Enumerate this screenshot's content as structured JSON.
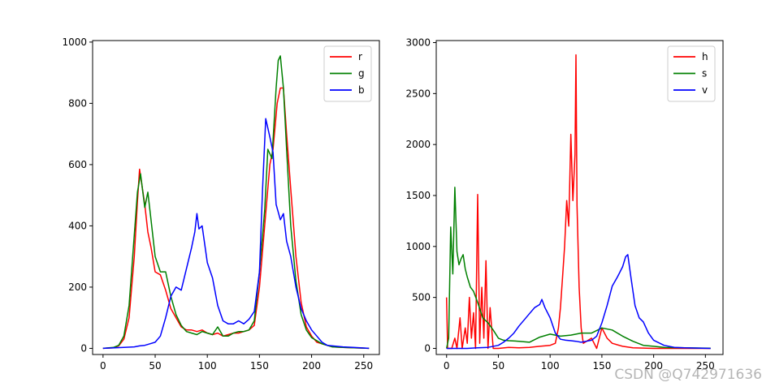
{
  "watermark": "CSDN @Q742971636",
  "chart_data": [
    {
      "type": "line",
      "xlim": [
        -10,
        265
      ],
      "ylim": [
        -20,
        1005
      ],
      "xticks": [
        0,
        50,
        100,
        150,
        200,
        250
      ],
      "yticks": [
        0,
        200,
        400,
        600,
        800,
        1000
      ],
      "legend_position": "top-right",
      "grid": false,
      "series": [
        {
          "name": "r",
          "color": "#ff0000",
          "points": [
            [
              0,
              0
            ],
            [
              10,
              2
            ],
            [
              15,
              8
            ],
            [
              20,
              30
            ],
            [
              25,
              100
            ],
            [
              30,
              300
            ],
            [
              33,
              480
            ],
            [
              35,
              585
            ],
            [
              37,
              540
            ],
            [
              40,
              470
            ],
            [
              43,
              380
            ],
            [
              46,
              330
            ],
            [
              50,
              250
            ],
            [
              55,
              240
            ],
            [
              60,
              190
            ],
            [
              65,
              130
            ],
            [
              70,
              100
            ],
            [
              75,
              70
            ],
            [
              80,
              60
            ],
            [
              85,
              60
            ],
            [
              90,
              55
            ],
            [
              95,
              60
            ],
            [
              100,
              50
            ],
            [
              105,
              45
            ],
            [
              110,
              50
            ],
            [
              115,
              40
            ],
            [
              120,
              45
            ],
            [
              125,
              50
            ],
            [
              130,
              50
            ],
            [
              135,
              55
            ],
            [
              140,
              60
            ],
            [
              145,
              75
            ],
            [
              150,
              200
            ],
            [
              155,
              400
            ],
            [
              160,
              600
            ],
            [
              163,
              650
            ],
            [
              167,
              800
            ],
            [
              170,
              850
            ],
            [
              173,
              850
            ],
            [
              176,
              700
            ],
            [
              180,
              520
            ],
            [
              185,
              300
            ],
            [
              190,
              150
            ],
            [
              195,
              70
            ],
            [
              200,
              40
            ],
            [
              205,
              20
            ],
            [
              210,
              15
            ],
            [
              215,
              10
            ],
            [
              220,
              5
            ],
            [
              230,
              3
            ],
            [
              240,
              2
            ],
            [
              255,
              0
            ]
          ]
        },
        {
          "name": "g",
          "color": "#008000",
          "points": [
            [
              0,
              0
            ],
            [
              10,
              3
            ],
            [
              15,
              10
            ],
            [
              20,
              40
            ],
            [
              25,
              140
            ],
            [
              30,
              370
            ],
            [
              33,
              510
            ],
            [
              36,
              570
            ],
            [
              40,
              460
            ],
            [
              43,
              510
            ],
            [
              46,
              420
            ],
            [
              50,
              300
            ],
            [
              55,
              250
            ],
            [
              60,
              250
            ],
            [
              65,
              170
            ],
            [
              70,
              110
            ],
            [
              75,
              75
            ],
            [
              80,
              55
            ],
            [
              85,
              50
            ],
            [
              90,
              45
            ],
            [
              95,
              55
            ],
            [
              100,
              50
            ],
            [
              105,
              45
            ],
            [
              110,
              70
            ],
            [
              115,
              40
            ],
            [
              120,
              40
            ],
            [
              125,
              50
            ],
            [
              130,
              55
            ],
            [
              135,
              55
            ],
            [
              140,
              60
            ],
            [
              145,
              90
            ],
            [
              150,
              250
            ],
            [
              155,
              450
            ],
            [
              158,
              650
            ],
            [
              162,
              620
            ],
            [
              166,
              850
            ],
            [
              168,
              940
            ],
            [
              170,
              955
            ],
            [
              173,
              850
            ],
            [
              176,
              650
            ],
            [
              180,
              400
            ],
            [
              185,
              220
            ],
            [
              190,
              110
            ],
            [
              195,
              60
            ],
            [
              200,
              35
            ],
            [
              205,
              25
            ],
            [
              210,
              15
            ],
            [
              220,
              5
            ],
            [
              230,
              3
            ],
            [
              255,
              0
            ]
          ]
        },
        {
          "name": "b",
          "color": "#0000ff",
          "points": [
            [
              0,
              0
            ],
            [
              20,
              3
            ],
            [
              30,
              5
            ],
            [
              35,
              8
            ],
            [
              40,
              10
            ],
            [
              45,
              15
            ],
            [
              50,
              20
            ],
            [
              55,
              40
            ],
            [
              60,
              100
            ],
            [
              65,
              170
            ],
            [
              70,
              200
            ],
            [
              75,
              190
            ],
            [
              80,
              260
            ],
            [
              85,
              330
            ],
            [
              88,
              380
            ],
            [
              90,
              440
            ],
            [
              92,
              390
            ],
            [
              95,
              400
            ],
            [
              100,
              280
            ],
            [
              105,
              230
            ],
            [
              110,
              140
            ],
            [
              115,
              90
            ],
            [
              120,
              80
            ],
            [
              125,
              80
            ],
            [
              130,
              90
            ],
            [
              135,
              80
            ],
            [
              140,
              95
            ],
            [
              145,
              120
            ],
            [
              150,
              250
            ],
            [
              153,
              520
            ],
            [
              156,
              750
            ],
            [
              160,
              690
            ],
            [
              163,
              640
            ],
            [
              166,
              470
            ],
            [
              170,
              420
            ],
            [
              173,
              440
            ],
            [
              176,
              350
            ],
            [
              180,
              300
            ],
            [
              185,
              200
            ],
            [
              190,
              130
            ],
            [
              195,
              90
            ],
            [
              200,
              60
            ],
            [
              205,
              40
            ],
            [
              210,
              20
            ],
            [
              215,
              10
            ],
            [
              220,
              8
            ],
            [
              230,
              5
            ],
            [
              240,
              3
            ],
            [
              255,
              0
            ]
          ]
        }
      ]
    },
    {
      "type": "line",
      "xlim": [
        -10,
        267
      ],
      "ylim": [
        -60,
        3020
      ],
      "xticks": [
        0,
        50,
        100,
        150,
        200,
        250
      ],
      "yticks": [
        0,
        500,
        1000,
        1500,
        2000,
        2500,
        3000
      ],
      "legend_position": "top-right",
      "grid": false,
      "series": [
        {
          "name": "h",
          "color": "#ff0000",
          "points": [
            [
              0,
              500
            ],
            [
              1,
              0
            ],
            [
              5,
              0
            ],
            [
              8,
              100
            ],
            [
              10,
              0
            ],
            [
              13,
              300
            ],
            [
              15,
              0
            ],
            [
              18,
              200
            ],
            [
              20,
              50
            ],
            [
              22,
              500
            ],
            [
              24,
              100
            ],
            [
              26,
              350
            ],
            [
              28,
              0
            ],
            [
              30,
              1510
            ],
            [
              32,
              50
            ],
            [
              34,
              600
            ],
            [
              36,
              100
            ],
            [
              38,
              860
            ],
            [
              40,
              0
            ],
            [
              42,
              400
            ],
            [
              45,
              0
            ],
            [
              50,
              0
            ],
            [
              60,
              10
            ],
            [
              70,
              5
            ],
            [
              80,
              10
            ],
            [
              90,
              20
            ],
            [
              100,
              30
            ],
            [
              105,
              50
            ],
            [
              108,
              200
            ],
            [
              110,
              400
            ],
            [
              112,
              700
            ],
            [
              114,
              1000
            ],
            [
              116,
              1450
            ],
            [
              118,
              1200
            ],
            [
              120,
              2100
            ],
            [
              122,
              1450
            ],
            [
              124,
              1900
            ],
            [
              125,
              2880
            ],
            [
              126,
              1400
            ],
            [
              128,
              600
            ],
            [
              130,
              200
            ],
            [
              132,
              50
            ],
            [
              140,
              100
            ],
            [
              145,
              0
            ],
            [
              150,
              200
            ],
            [
              155,
              100
            ],
            [
              160,
              50
            ],
            [
              170,
              20
            ],
            [
              180,
              5
            ],
            [
              200,
              0
            ],
            [
              255,
              0
            ]
          ]
        },
        {
          "name": "s",
          "color": "#008000",
          "points": [
            [
              0,
              0
            ],
            [
              2,
              100
            ],
            [
              4,
              1190
            ],
            [
              6,
              730
            ],
            [
              8,
              1580
            ],
            [
              10,
              950
            ],
            [
              12,
              820
            ],
            [
              14,
              880
            ],
            [
              16,
              920
            ],
            [
              18,
              780
            ],
            [
              20,
              700
            ],
            [
              23,
              600
            ],
            [
              26,
              560
            ],
            [
              30,
              450
            ],
            [
              35,
              300
            ],
            [
              40,
              250
            ],
            [
              45,
              180
            ],
            [
              50,
              100
            ],
            [
              55,
              80
            ],
            [
              60,
              75
            ],
            [
              70,
              70
            ],
            [
              80,
              60
            ],
            [
              90,
              110
            ],
            [
              100,
              140
            ],
            [
              110,
              120
            ],
            [
              120,
              130
            ],
            [
              130,
              150
            ],
            [
              140,
              150
            ],
            [
              150,
              200
            ],
            [
              160,
              180
            ],
            [
              170,
              120
            ],
            [
              180,
              70
            ],
            [
              190,
              30
            ],
            [
              200,
              20
            ],
            [
              210,
              10
            ],
            [
              230,
              5
            ],
            [
              255,
              2
            ]
          ]
        },
        {
          "name": "v",
          "color": "#0000ff",
          "points": [
            [
              0,
              0
            ],
            [
              20,
              0
            ],
            [
              30,
              5
            ],
            [
              40,
              10
            ],
            [
              50,
              30
            ],
            [
              55,
              60
            ],
            [
              60,
              100
            ],
            [
              65,
              150
            ],
            [
              70,
              220
            ],
            [
              75,
              280
            ],
            [
              80,
              340
            ],
            [
              85,
              400
            ],
            [
              90,
              430
            ],
            [
              92,
              480
            ],
            [
              95,
              400
            ],
            [
              100,
              300
            ],
            [
              105,
              150
            ],
            [
              110,
              90
            ],
            [
              115,
              80
            ],
            [
              120,
              75
            ],
            [
              125,
              70
            ],
            [
              130,
              60
            ],
            [
              135,
              70
            ],
            [
              140,
              80
            ],
            [
              145,
              120
            ],
            [
              150,
              250
            ],
            [
              155,
              420
            ],
            [
              160,
              610
            ],
            [
              165,
              700
            ],
            [
              170,
              800
            ],
            [
              173,
              900
            ],
            [
              175,
              920
            ],
            [
              178,
              700
            ],
            [
              182,
              420
            ],
            [
              186,
              300
            ],
            [
              190,
              260
            ],
            [
              195,
              150
            ],
            [
              200,
              80
            ],
            [
              210,
              30
            ],
            [
              220,
              10
            ],
            [
              230,
              5
            ],
            [
              255,
              0
            ]
          ]
        }
      ]
    }
  ]
}
